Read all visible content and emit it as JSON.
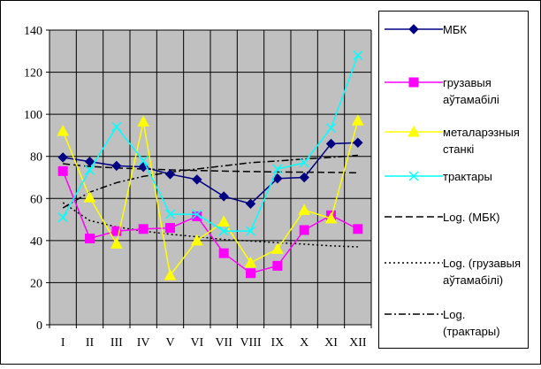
{
  "chart_data": {
    "type": "line",
    "categories": [
      "I",
      "II",
      "III",
      "IV",
      "V",
      "VI",
      "VII",
      "VIII",
      "IX",
      "X",
      "XI",
      "XII"
    ],
    "ylim": [
      0,
      140
    ],
    "yticks": [
      0,
      20,
      40,
      60,
      80,
      100,
      120,
      140
    ],
    "grid": true,
    "legend_position": "right",
    "series": [
      {
        "name": "МБК",
        "color": "#000080",
        "marker": "diamond",
        "values": [
          79.5,
          77.5,
          75.5,
          75,
          71.5,
          69,
          61,
          57.5,
          69.5,
          70,
          86,
          86.5
        ]
      },
      {
        "name": "грузавыя аўтамабілі",
        "color": "#ff00ff",
        "marker": "square",
        "values": [
          73,
          41,
          44.5,
          45.5,
          46,
          51.5,
          34,
          24.5,
          28,
          45,
          52,
          45.5
        ]
      },
      {
        "name": "металарэзныя станкі",
        "color": "#ffff00",
        "marker": "triangle",
        "values": [
          92,
          60.5,
          38.5,
          96.5,
          23.5,
          40,
          49,
          29.5,
          36,
          54.5,
          50.5,
          97
        ]
      },
      {
        "name": "трактары",
        "color": "#00ffff",
        "marker": "x",
        "values": [
          51,
          73.5,
          94,
          78,
          52.5,
          52.5,
          44.5,
          44.5,
          74,
          77,
          93.5,
          128
        ]
      }
    ],
    "trendlines": [
      {
        "name": "Log. (МБК)",
        "dash": "long-dash",
        "values": [
          76.5,
          75.2,
          74.5,
          74,
          73.6,
          73.3,
          73,
          72.8,
          72.6,
          72.5,
          72.4,
          72.2
        ]
      },
      {
        "name": "Log. (грузавыя аўтамабілі)",
        "dash": "dot",
        "values": [
          58,
          49.5,
          46.5,
          44.5,
          43,
          41.8,
          40.5,
          39.8,
          39,
          38.3,
          37.5,
          37
        ]
      },
      {
        "name": "Log. (трактары)",
        "dash": "dash-dot",
        "values": [
          55.5,
          63,
          67.5,
          70.5,
          72.5,
          74,
          75.5,
          77,
          77.8,
          78.8,
          79.5,
          80.5
        ]
      }
    ]
  }
}
